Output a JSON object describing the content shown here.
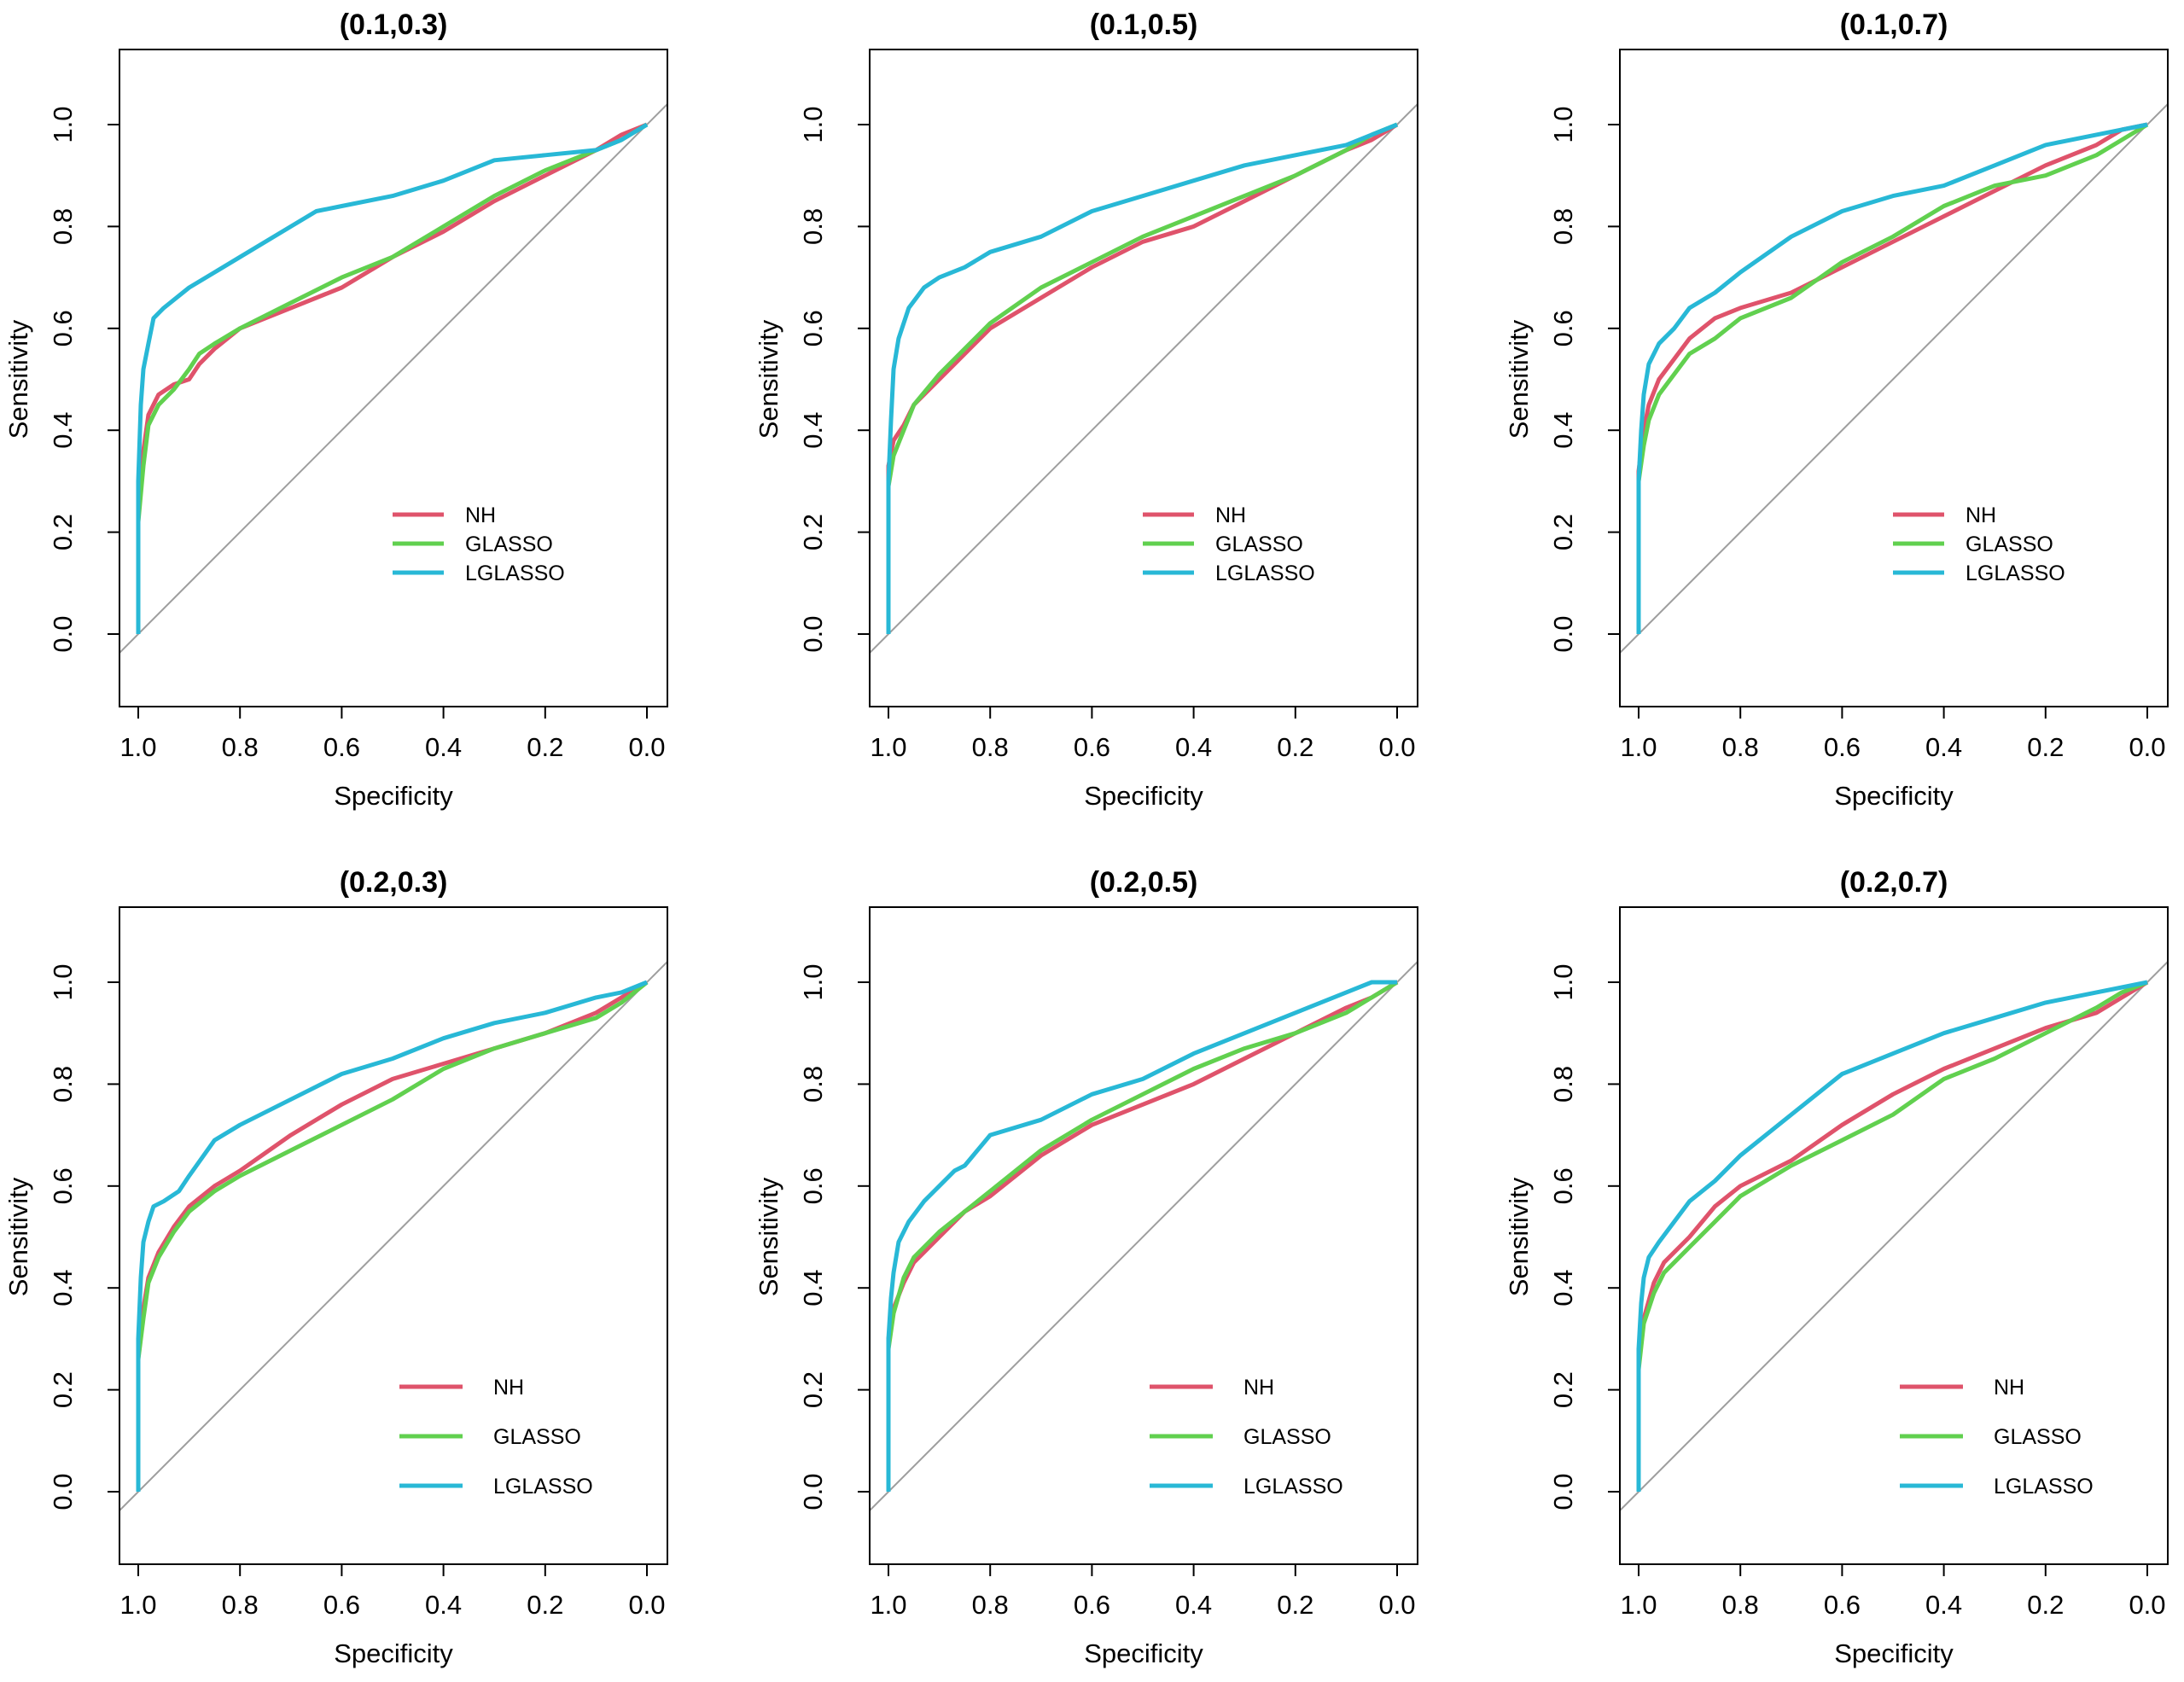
{
  "colors": {
    "NH": "#DF536B",
    "GLASSO": "#61D04F",
    "LGLASSO": "#28B8D6",
    "diagonal": "#9E9E9E"
  },
  "chart_data": [
    {
      "type": "line",
      "title": "(0.1,0.3)",
      "xlabel": "Specificity",
      "ylabel": "Sensitivity",
      "xlim": [
        1.0,
        0.0
      ],
      "ylim": [
        -0.13,
        1.13
      ],
      "xticks": [
        "1.0",
        "0.8",
        "0.6",
        "0.4",
        "0.2",
        "0.0"
      ],
      "yticks": [
        "0.0",
        "0.2",
        "0.4",
        "0.6",
        "0.8",
        "1.0"
      ],
      "reference_line": "diagonal",
      "legend": [
        "NH",
        "GLASSO",
        "LGLASSO"
      ],
      "series": [
        {
          "name": "NH",
          "x": [
            1.0,
            1.0,
            0.99,
            0.98,
            0.96,
            0.93,
            0.9,
            0.88,
            0.85,
            0.8,
            0.7,
            0.6,
            0.5,
            0.4,
            0.3,
            0.2,
            0.1,
            0.05,
            0.0
          ],
          "y": [
            0.0,
            0.25,
            0.36,
            0.43,
            0.47,
            0.49,
            0.5,
            0.53,
            0.56,
            0.6,
            0.64,
            0.68,
            0.74,
            0.79,
            0.85,
            0.9,
            0.95,
            0.98,
            1.0
          ]
        },
        {
          "name": "GLASSO",
          "x": [
            1.0,
            1.0,
            0.99,
            0.98,
            0.96,
            0.93,
            0.9,
            0.88,
            0.85,
            0.8,
            0.7,
            0.6,
            0.5,
            0.4,
            0.3,
            0.2,
            0.1,
            0.05,
            0.0
          ],
          "y": [
            0.0,
            0.22,
            0.33,
            0.41,
            0.45,
            0.48,
            0.52,
            0.55,
            0.57,
            0.6,
            0.65,
            0.7,
            0.74,
            0.8,
            0.86,
            0.91,
            0.95,
            0.97,
            1.0
          ]
        },
        {
          "name": "LGLASSO",
          "x": [
            1.0,
            1.0,
            0.995,
            0.99,
            0.98,
            0.97,
            0.95,
            0.9,
            0.85,
            0.8,
            0.7,
            0.65,
            0.6,
            0.5,
            0.4,
            0.3,
            0.2,
            0.1,
            0.05,
            0.0
          ],
          "y": [
            0.0,
            0.3,
            0.45,
            0.52,
            0.57,
            0.62,
            0.64,
            0.68,
            0.71,
            0.74,
            0.8,
            0.83,
            0.84,
            0.86,
            0.89,
            0.93,
            0.94,
            0.95,
            0.97,
            1.0
          ]
        }
      ]
    },
    {
      "type": "line",
      "title": "(0.1,0.5)",
      "xlabel": "Specificity",
      "ylabel": "Sensitivity",
      "xlim": [
        1.0,
        0.0
      ],
      "ylim": [
        -0.13,
        1.13
      ],
      "xticks": [
        "1.0",
        "0.8",
        "0.6",
        "0.4",
        "0.2",
        "0.0"
      ],
      "yticks": [
        "0.0",
        "0.2",
        "0.4",
        "0.6",
        "0.8",
        "1.0"
      ],
      "reference_line": "diagonal",
      "legend": [
        "NH",
        "GLASSO",
        "LGLASSO"
      ],
      "series": [
        {
          "name": "NH",
          "x": [
            1.0,
            1.0,
            0.99,
            0.97,
            0.95,
            0.9,
            0.85,
            0.8,
            0.7,
            0.6,
            0.5,
            0.4,
            0.3,
            0.2,
            0.1,
            0.05,
            0.0
          ],
          "y": [
            0.0,
            0.33,
            0.38,
            0.41,
            0.45,
            0.5,
            0.55,
            0.6,
            0.66,
            0.72,
            0.77,
            0.8,
            0.85,
            0.9,
            0.95,
            0.97,
            1.0
          ]
        },
        {
          "name": "GLASSO",
          "x": [
            1.0,
            1.0,
            0.99,
            0.97,
            0.95,
            0.9,
            0.85,
            0.8,
            0.7,
            0.6,
            0.5,
            0.4,
            0.3,
            0.2,
            0.1,
            0.05,
            0.0
          ],
          "y": [
            0.0,
            0.29,
            0.35,
            0.4,
            0.45,
            0.51,
            0.56,
            0.61,
            0.68,
            0.73,
            0.78,
            0.82,
            0.86,
            0.9,
            0.95,
            0.98,
            1.0
          ]
        },
        {
          "name": "LGLASSO",
          "x": [
            1.0,
            1.0,
            0.995,
            0.99,
            0.98,
            0.96,
            0.93,
            0.9,
            0.85,
            0.8,
            0.7,
            0.6,
            0.5,
            0.4,
            0.3,
            0.2,
            0.1,
            0.05,
            0.0
          ],
          "y": [
            0.0,
            0.3,
            0.42,
            0.52,
            0.58,
            0.64,
            0.68,
            0.7,
            0.72,
            0.75,
            0.78,
            0.83,
            0.86,
            0.89,
            0.92,
            0.94,
            0.96,
            0.98,
            1.0
          ]
        }
      ]
    },
    {
      "type": "line",
      "title": "(0.1,0.7)",
      "xlabel": "Specificity",
      "ylabel": "Sensitivity",
      "xlim": [
        1.0,
        0.0
      ],
      "ylim": [
        -0.13,
        1.13
      ],
      "xticks": [
        "1.0",
        "0.8",
        "0.6",
        "0.4",
        "0.2",
        "0.0"
      ],
      "yticks": [
        "0.0",
        "0.2",
        "0.4",
        "0.6",
        "0.8",
        "1.0"
      ],
      "reference_line": "diagonal",
      "legend": [
        "NH",
        "GLASSO",
        "LGLASSO"
      ],
      "series": [
        {
          "name": "NH",
          "x": [
            1.0,
            1.0,
            0.99,
            0.98,
            0.96,
            0.93,
            0.9,
            0.85,
            0.8,
            0.7,
            0.6,
            0.5,
            0.4,
            0.3,
            0.2,
            0.1,
            0.05,
            0.0
          ],
          "y": [
            0.0,
            0.32,
            0.4,
            0.45,
            0.5,
            0.54,
            0.58,
            0.62,
            0.64,
            0.67,
            0.72,
            0.77,
            0.82,
            0.87,
            0.92,
            0.96,
            0.99,
            1.0
          ]
        },
        {
          "name": "GLASSO",
          "x": [
            1.0,
            1.0,
            0.99,
            0.98,
            0.96,
            0.93,
            0.9,
            0.85,
            0.8,
            0.7,
            0.6,
            0.5,
            0.4,
            0.3,
            0.2,
            0.1,
            0.05,
            0.0
          ],
          "y": [
            0.0,
            0.3,
            0.37,
            0.42,
            0.47,
            0.51,
            0.55,
            0.58,
            0.62,
            0.66,
            0.73,
            0.78,
            0.84,
            0.88,
            0.9,
            0.94,
            0.97,
            1.0
          ]
        },
        {
          "name": "LGLASSO",
          "x": [
            1.0,
            1.0,
            0.995,
            0.99,
            0.98,
            0.96,
            0.93,
            0.9,
            0.85,
            0.8,
            0.7,
            0.6,
            0.5,
            0.4,
            0.3,
            0.2,
            0.1,
            0.05,
            0.0
          ],
          "y": [
            0.0,
            0.3,
            0.4,
            0.47,
            0.53,
            0.57,
            0.6,
            0.64,
            0.67,
            0.71,
            0.78,
            0.83,
            0.86,
            0.88,
            0.92,
            0.96,
            0.98,
            0.99,
            1.0
          ]
        }
      ]
    },
    {
      "type": "line",
      "title": "(0.2,0.3)",
      "xlabel": "Specificity",
      "ylabel": "Sensitivity",
      "xlim": [
        1.0,
        0.0
      ],
      "ylim": [
        -0.13,
        1.13
      ],
      "xticks": [
        "1.0",
        "0.8",
        "0.6",
        "0.4",
        "0.2",
        "0.0"
      ],
      "yticks": [
        "0.0",
        "0.2",
        "0.4",
        "0.6",
        "0.8",
        "1.0"
      ],
      "reference_line": "diagonal",
      "legend": [
        "NH",
        "GLASSO",
        "LGLASSO"
      ],
      "series": [
        {
          "name": "NH",
          "x": [
            1.0,
            1.0,
            0.99,
            0.98,
            0.96,
            0.93,
            0.9,
            0.85,
            0.8,
            0.7,
            0.6,
            0.5,
            0.4,
            0.3,
            0.2,
            0.1,
            0.05,
            0.0
          ],
          "y": [
            0.0,
            0.28,
            0.36,
            0.42,
            0.47,
            0.52,
            0.56,
            0.6,
            0.63,
            0.7,
            0.76,
            0.81,
            0.84,
            0.87,
            0.9,
            0.94,
            0.97,
            1.0
          ]
        },
        {
          "name": "GLASSO",
          "x": [
            1.0,
            1.0,
            0.99,
            0.98,
            0.96,
            0.93,
            0.9,
            0.85,
            0.8,
            0.7,
            0.6,
            0.5,
            0.4,
            0.3,
            0.2,
            0.1,
            0.05,
            0.0
          ],
          "y": [
            0.0,
            0.26,
            0.34,
            0.41,
            0.46,
            0.51,
            0.55,
            0.59,
            0.62,
            0.67,
            0.72,
            0.77,
            0.83,
            0.87,
            0.9,
            0.93,
            0.96,
            1.0
          ]
        },
        {
          "name": "LGLASSO",
          "x": [
            1.0,
            1.0,
            0.995,
            0.99,
            0.98,
            0.97,
            0.95,
            0.92,
            0.9,
            0.85,
            0.8,
            0.7,
            0.6,
            0.5,
            0.4,
            0.3,
            0.2,
            0.1,
            0.05,
            0.0
          ],
          "y": [
            0.0,
            0.3,
            0.42,
            0.49,
            0.53,
            0.56,
            0.57,
            0.59,
            0.62,
            0.69,
            0.72,
            0.77,
            0.82,
            0.85,
            0.89,
            0.92,
            0.94,
            0.97,
            0.98,
            1.0
          ]
        }
      ]
    },
    {
      "type": "line",
      "title": "(0.2,0.5)",
      "xlabel": "Specificity",
      "ylabel": "Sensitivity",
      "xlim": [
        1.0,
        0.0
      ],
      "ylim": [
        -0.13,
        1.13
      ],
      "xticks": [
        "1.0",
        "0.8",
        "0.6",
        "0.4",
        "0.2",
        "0.0"
      ],
      "yticks": [
        "0.0",
        "0.2",
        "0.4",
        "0.6",
        "0.8",
        "1.0"
      ],
      "reference_line": "diagonal",
      "legend": [
        "NH",
        "GLASSO",
        "LGLASSO"
      ],
      "series": [
        {
          "name": "NH",
          "x": [
            1.0,
            1.0,
            0.99,
            0.97,
            0.95,
            0.9,
            0.85,
            0.8,
            0.7,
            0.6,
            0.5,
            0.4,
            0.3,
            0.2,
            0.1,
            0.05,
            0.0
          ],
          "y": [
            0.0,
            0.3,
            0.36,
            0.41,
            0.45,
            0.5,
            0.55,
            0.58,
            0.66,
            0.72,
            0.76,
            0.8,
            0.85,
            0.9,
            0.95,
            0.97,
            1.0
          ]
        },
        {
          "name": "GLASSO",
          "x": [
            1.0,
            1.0,
            0.99,
            0.97,
            0.95,
            0.9,
            0.85,
            0.8,
            0.7,
            0.6,
            0.5,
            0.4,
            0.3,
            0.2,
            0.1,
            0.05,
            0.0
          ],
          "y": [
            0.0,
            0.28,
            0.35,
            0.42,
            0.46,
            0.51,
            0.55,
            0.59,
            0.67,
            0.73,
            0.78,
            0.83,
            0.87,
            0.9,
            0.94,
            0.97,
            1.0
          ]
        },
        {
          "name": "LGLASSO",
          "x": [
            1.0,
            1.0,
            0.995,
            0.99,
            0.98,
            0.96,
            0.93,
            0.9,
            0.87,
            0.85,
            0.8,
            0.7,
            0.6,
            0.5,
            0.4,
            0.3,
            0.2,
            0.1,
            0.05,
            0.0
          ],
          "y": [
            0.0,
            0.3,
            0.38,
            0.43,
            0.49,
            0.53,
            0.57,
            0.6,
            0.63,
            0.64,
            0.7,
            0.73,
            0.78,
            0.81,
            0.86,
            0.9,
            0.94,
            0.98,
            1.0,
            1.0
          ]
        }
      ]
    },
    {
      "type": "line",
      "title": "(0.2,0.7)",
      "xlabel": "Specificity",
      "ylabel": "Sensitivity",
      "xlim": [
        1.0,
        0.0
      ],
      "ylim": [
        -0.13,
        1.13
      ],
      "xticks": [
        "1.0",
        "0.8",
        "0.6",
        "0.4",
        "0.2",
        "0.0"
      ],
      "yticks": [
        "0.0",
        "0.2",
        "0.4",
        "0.6",
        "0.8",
        "1.0"
      ],
      "reference_line": "diagonal",
      "legend": [
        "NH",
        "GLASSO",
        "LGLASSO"
      ],
      "series": [
        {
          "name": "NH",
          "x": [
            1.0,
            1.0,
            0.99,
            0.97,
            0.95,
            0.9,
            0.85,
            0.8,
            0.7,
            0.6,
            0.5,
            0.4,
            0.3,
            0.2,
            0.1,
            0.05,
            0.0
          ],
          "y": [
            0.0,
            0.25,
            0.34,
            0.41,
            0.45,
            0.5,
            0.56,
            0.6,
            0.65,
            0.72,
            0.78,
            0.83,
            0.87,
            0.91,
            0.94,
            0.97,
            1.0
          ]
        },
        {
          "name": "GLASSO",
          "x": [
            1.0,
            1.0,
            0.99,
            0.97,
            0.95,
            0.9,
            0.85,
            0.8,
            0.7,
            0.6,
            0.5,
            0.4,
            0.3,
            0.2,
            0.1,
            0.05,
            0.0
          ],
          "y": [
            0.0,
            0.24,
            0.33,
            0.39,
            0.43,
            0.48,
            0.53,
            0.58,
            0.64,
            0.69,
            0.74,
            0.81,
            0.85,
            0.9,
            0.95,
            0.98,
            1.0
          ]
        },
        {
          "name": "LGLASSO",
          "x": [
            1.0,
            1.0,
            0.995,
            0.99,
            0.98,
            0.96,
            0.93,
            0.9,
            0.85,
            0.8,
            0.7,
            0.6,
            0.5,
            0.4,
            0.3,
            0.2,
            0.1,
            0.05,
            0.0
          ],
          "y": [
            0.0,
            0.28,
            0.37,
            0.42,
            0.46,
            0.49,
            0.53,
            0.57,
            0.61,
            0.66,
            0.74,
            0.82,
            0.86,
            0.9,
            0.93,
            0.96,
            0.98,
            0.99,
            1.0
          ]
        }
      ]
    }
  ]
}
